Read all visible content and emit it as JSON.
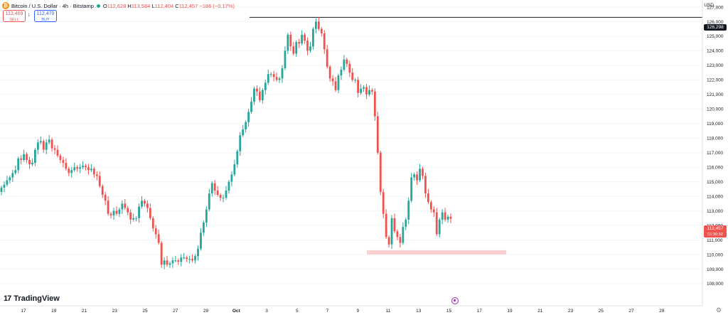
{
  "header": {
    "title": "Bitcoin / U.S. Dollar · 4h · Bitstamp",
    "open_label": "O",
    "open": "112,628",
    "high_label": "H",
    "high": "113,584",
    "low_label": "L",
    "low": "112,404",
    "close_label": "C",
    "close": "112,457",
    "change": "−186 (−0.17%)"
  },
  "trade": {
    "sell_price": "112,469",
    "sell_label": "SELL",
    "spread": "1",
    "buy_price": "112,470",
    "buy_label": "BUY"
  },
  "price_axis": {
    "currency": "USD",
    "hline_price": "126,298",
    "last_price": "112,457",
    "countdown": "01:30:33"
  },
  "branding": {
    "logo_text": "TradingView"
  },
  "colors": {
    "up": "#26a69a",
    "down": "#ef5350",
    "zone": "#fbd0d0",
    "hline": "#131722"
  },
  "chart_data": {
    "type": "candlestick",
    "symbol": "Bitcoin / U.S. Dollar",
    "interval": "4h",
    "exchange": "Bitstamp",
    "y_ticks": [
      108000,
      109000,
      110000,
      111000,
      112000,
      113000,
      114000,
      115000,
      116000,
      117000,
      118000,
      119000,
      120000,
      121000,
      122000,
      123000,
      124000,
      125000,
      126000,
      127000
    ],
    "y_tick_labels": [
      "108,000",
      "109,000",
      "110,000",
      "111,000",
      "112,000",
      "113,000",
      "114,000",
      "115,000",
      "116,000",
      "117,000",
      "118,000",
      "119,000",
      "120,000",
      "121,000",
      "122,000",
      "123,000",
      "124,000",
      "125,000",
      "126,000",
      "127,000"
    ],
    "x_ticks": [
      "17",
      "19",
      "21",
      "23",
      "25",
      "27",
      "29",
      "Oct",
      "3",
      "5",
      "7",
      "9",
      "11",
      "13",
      "15",
      "17",
      "19",
      "21",
      "23",
      "25",
      "27",
      "29"
    ],
    "horizontal_line": 126298,
    "support_zone": {
      "from": 110000,
      "to": 110300
    },
    "closes": [
      114600,
      114800,
      115100,
      115300,
      115600,
      115800,
      116600,
      116500,
      116900,
      116500,
      116200,
      116300,
      117200,
      117700,
      117800,
      117200,
      117700,
      117900,
      117300,
      117200,
      116800,
      116500,
      116300,
      115900,
      115600,
      115800,
      116000,
      115900,
      116000,
      116100,
      116000,
      115800,
      115900,
      115500,
      115400,
      114700,
      114100,
      113700,
      112800,
      112700,
      113000,
      112800,
      113100,
      113500,
      113200,
      112900,
      112400,
      112500,
      112500,
      113300,
      113700,
      113500,
      113200,
      112500,
      111800,
      111400,
      110800,
      109300,
      109600,
      109300,
      109400,
      109600,
      109600,
      109500,
      109800,
      109800,
      109700,
      109700,
      109600,
      109900,
      110400,
      111500,
      112200,
      113100,
      114200,
      114900,
      114400,
      114100,
      113900,
      113900,
      114400,
      115000,
      115500,
      116200,
      117100,
      118200,
      118600,
      119100,
      119800,
      120500,
      121400,
      121200,
      120600,
      121300,
      121800,
      122400,
      122400,
      122200,
      122000,
      122100,
      122800,
      124000,
      125100,
      124300,
      123800,
      124600,
      124500,
      125100,
      124700,
      124000,
      124300,
      125500,
      126000,
      125500,
      125200,
      124100,
      122900,
      122100,
      121900,
      121300,
      122300,
      122700,
      123400,
      123100,
      122500,
      122000,
      122000,
      121100,
      121400,
      121500,
      121000,
      121300,
      121200,
      119500,
      117000,
      114300,
      112800,
      111200,
      110700,
      112500,
      111600,
      111200,
      110800,
      111900,
      112400,
      113700,
      115300,
      115500,
      115100,
      115900,
      115400,
      114200,
      113600,
      113100,
      112900,
      111400,
      112400,
      112900,
      112400,
      112600,
      112457
    ]
  }
}
